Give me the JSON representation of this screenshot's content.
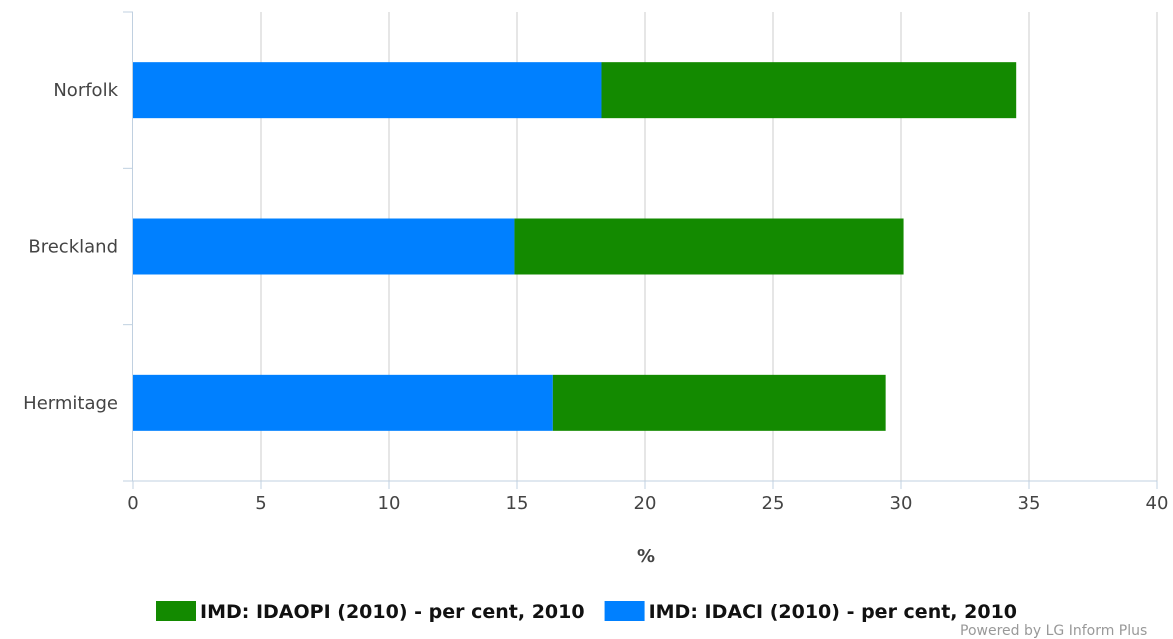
{
  "chart_data": {
    "type": "bar",
    "orientation": "horizontal",
    "stacked": true,
    "categories": [
      "Norfolk",
      "Breckland",
      "Hermitage"
    ],
    "series": [
      {
        "name": "IMD: IDACI (2010) - per cent, 2010",
        "color": "#0080ff",
        "values": [
          18.3,
          14.9,
          16.4
        ]
      },
      {
        "name": "IMD: IDAOPI (2010) - per cent, 2010",
        "color": "#138a00",
        "values": [
          16.2,
          15.2,
          13.0
        ]
      }
    ],
    "xlabel": "%",
    "xlim": [
      0,
      40
    ],
    "xticks": [
      0,
      5,
      10,
      15,
      20,
      25,
      30,
      35,
      40
    ],
    "grid": true,
    "legend": {
      "placement": "bottom",
      "order": [
        "IMD: IDAOPI (2010) - per cent, 2010",
        "IMD: IDACI (2010) - per cent, 2010"
      ]
    }
  },
  "credit": "Powered by LG Inform Plus"
}
